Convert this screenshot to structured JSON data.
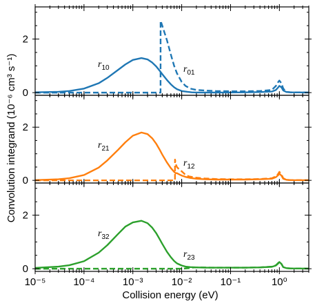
{
  "chart_data": {
    "type": "line",
    "xlabel": "Collision energy (eV)",
    "ylabel": "Convolution integrand (10⁻⁶ cm³ s⁻¹)",
    "xscale": "log",
    "xlim": [
      1e-05,
      4
    ],
    "ylim": [
      -0.1,
      3.2
    ],
    "xticks": [
      1e-05,
      0.0001,
      0.001,
      0.01,
      0.1,
      1
    ],
    "xtick_labels": [
      "10⁻⁵",
      "10⁻⁴",
      "10⁻³",
      "10⁻²",
      "10⁻¹",
      "10⁰"
    ],
    "yticks": [
      0,
      2
    ],
    "ytick_labels": [
      "0",
      "2"
    ],
    "panels": [
      {
        "color": "#1f77b4",
        "series": [
          {
            "name": "r10",
            "label_main": "r",
            "label_sub": "10",
            "style": "solid",
            "x": [
              1e-05,
              3e-05,
              5e-05,
              0.0001,
              0.0002,
              0.0003,
              0.0005,
              0.0007,
              0.001,
              0.0015,
              0.002,
              0.0025,
              0.003,
              0.0035,
              0.004,
              0.005,
              0.006,
              0.007,
              0.008,
              0.01,
              0.013,
              0.016,
              0.02,
              0.03,
              0.05,
              0.1,
              0.2,
              0.4,
              0.7,
              0.85,
              0.95,
              1.0,
              1.1,
              1.2,
              1.4,
              1.7,
              4
            ],
            "y": [
              0.01,
              0.03,
              0.06,
              0.15,
              0.35,
              0.55,
              0.85,
              1.05,
              1.22,
              1.29,
              1.24,
              1.12,
              0.98,
              0.83,
              0.69,
              0.47,
              0.31,
              0.2,
              0.13,
              0.06,
              0.03,
              0.01,
              0.005,
              0.003,
              0.003,
              0.005,
              0.01,
              0.02,
              0.04,
              0.1,
              0.2,
              0.25,
              0.2,
              0.08,
              0.02,
              0.01,
              0.005
            ]
          },
          {
            "name": "r01",
            "label_main": "r",
            "label_sub": "01",
            "style": "dashed",
            "x": [
              1e-05,
              0.001,
              0.00369,
              0.0037,
              0.004,
              0.005,
              0.006,
              0.007,
              0.008,
              0.01,
              0.012,
              0.015,
              0.02,
              0.03,
              0.05,
              0.1,
              0.2,
              0.4,
              0.7,
              0.85,
              0.95,
              1.0,
              1.1,
              1.2,
              1.4,
              1.7,
              4
            ],
            "y": [
              0,
              0,
              0,
              2.68,
              2.5,
              1.95,
              1.42,
              1.0,
              0.72,
              0.4,
              0.25,
              0.15,
              0.1,
              0.08,
              0.06,
              0.05,
              0.05,
              0.06,
              0.1,
              0.25,
              0.4,
              0.45,
              0.35,
              0.15,
              0.03,
              0.01,
              0.005
            ]
          }
        ]
      },
      {
        "color": "#ff7f0e",
        "series": [
          {
            "name": "r21",
            "label_main": "r",
            "label_sub": "21",
            "style": "solid",
            "x": [
              1e-05,
              3e-05,
              5e-05,
              0.0001,
              0.0002,
              0.0003,
              0.0005,
              0.0007,
              0.001,
              0.0015,
              0.002,
              0.0025,
              0.003,
              0.0035,
              0.004,
              0.005,
              0.006,
              0.007,
              0.0075,
              0.008,
              0.009,
              0.01,
              0.012,
              0.015,
              0.02,
              0.03,
              0.05,
              0.1,
              0.2,
              0.4,
              0.7,
              0.85,
              0.95,
              1.0,
              1.1,
              1.2,
              1.4,
              1.7,
              4
            ],
            "y": [
              0.01,
              0.04,
              0.08,
              0.2,
              0.48,
              0.75,
              1.15,
              1.43,
              1.68,
              1.8,
              1.74,
              1.58,
              1.38,
              1.17,
              0.97,
              0.67,
              0.46,
              0.32,
              0.27,
              0.27,
              0.22,
              0.18,
              0.13,
              0.09,
              0.06,
              0.04,
              0.03,
              0.03,
              0.03,
              0.04,
              0.06,
              0.12,
              0.2,
              0.25,
              0.18,
              0.06,
              0.02,
              0.01,
              0.005
            ]
          },
          {
            "name": "r12",
            "label_main": "r",
            "label_sub": "12",
            "style": "dashed",
            "x": [
              1e-05,
              0.001,
              0.00729,
              0.0073,
              0.0076,
              0.008,
              0.009,
              0.01,
              0.011,
              0.012,
              0.014,
              0.017,
              0.02,
              0.03,
              0.05,
              0.1,
              0.2,
              0.4,
              0.7,
              0.85,
              0.95,
              1.0,
              1.1,
              1.2,
              1.4,
              1.7,
              4
            ],
            "y": [
              0,
              0,
              0,
              0.78,
              0.6,
              0.5,
              0.4,
              0.34,
              0.27,
              0.2,
              0.15,
              0.12,
              0.1,
              0.07,
              0.05,
              0.04,
              0.04,
              0.05,
              0.08,
              0.15,
              0.25,
              0.32,
              0.22,
              0.08,
              0.02,
              0.01,
              0.005
            ]
          }
        ]
      },
      {
        "color": "#2ca02c",
        "series": [
          {
            "name": "r32",
            "label_main": "r",
            "label_sub": "32",
            "style": "solid",
            "x": [
              1e-05,
              3e-05,
              5e-05,
              0.0001,
              0.0002,
              0.0003,
              0.0005,
              0.0007,
              0.001,
              0.0015,
              0.002,
              0.0025,
              0.003,
              0.0035,
              0.004,
              0.005,
              0.006,
              0.007,
              0.008,
              0.01,
              0.012,
              0.015,
              0.02,
              0.03,
              0.05,
              0.1,
              0.2,
              0.4,
              0.7,
              0.85,
              0.95,
              1.0,
              1.1,
              1.2,
              1.4,
              1.7,
              4
            ],
            "y": [
              0.03,
              0.08,
              0.13,
              0.28,
              0.6,
              0.88,
              1.3,
              1.57,
              1.73,
              1.79,
              1.7,
              1.53,
              1.33,
              1.12,
              0.93,
              0.63,
              0.43,
              0.29,
              0.2,
              0.12,
              0.08,
              0.06,
              0.05,
              0.04,
              0.04,
              0.04,
              0.04,
              0.05,
              0.07,
              0.12,
              0.2,
              0.25,
              0.18,
              0.06,
              0.02,
              0.01,
              0.005
            ]
          },
          {
            "name": "r23",
            "label_main": "r",
            "label_sub": "23",
            "style": "dashed",
            "x": [
              1e-05,
              0.001,
              0.01,
              0.014,
              0.018,
              0.025,
              0.04,
              0.1,
              0.2,
              0.4,
              0.7,
              0.85,
              0.95,
              1.0,
              1.1,
              1.2,
              1.4,
              1.7,
              4
            ],
            "y": [
              0,
              0,
              0,
              0.02,
              0.05,
              0.05,
              0.04,
              0.04,
              0.04,
              0.05,
              0.08,
              0.13,
              0.22,
              0.25,
              0.18,
              0.06,
              0.02,
              0.01,
              0.005
            ]
          }
        ]
      }
    ]
  }
}
